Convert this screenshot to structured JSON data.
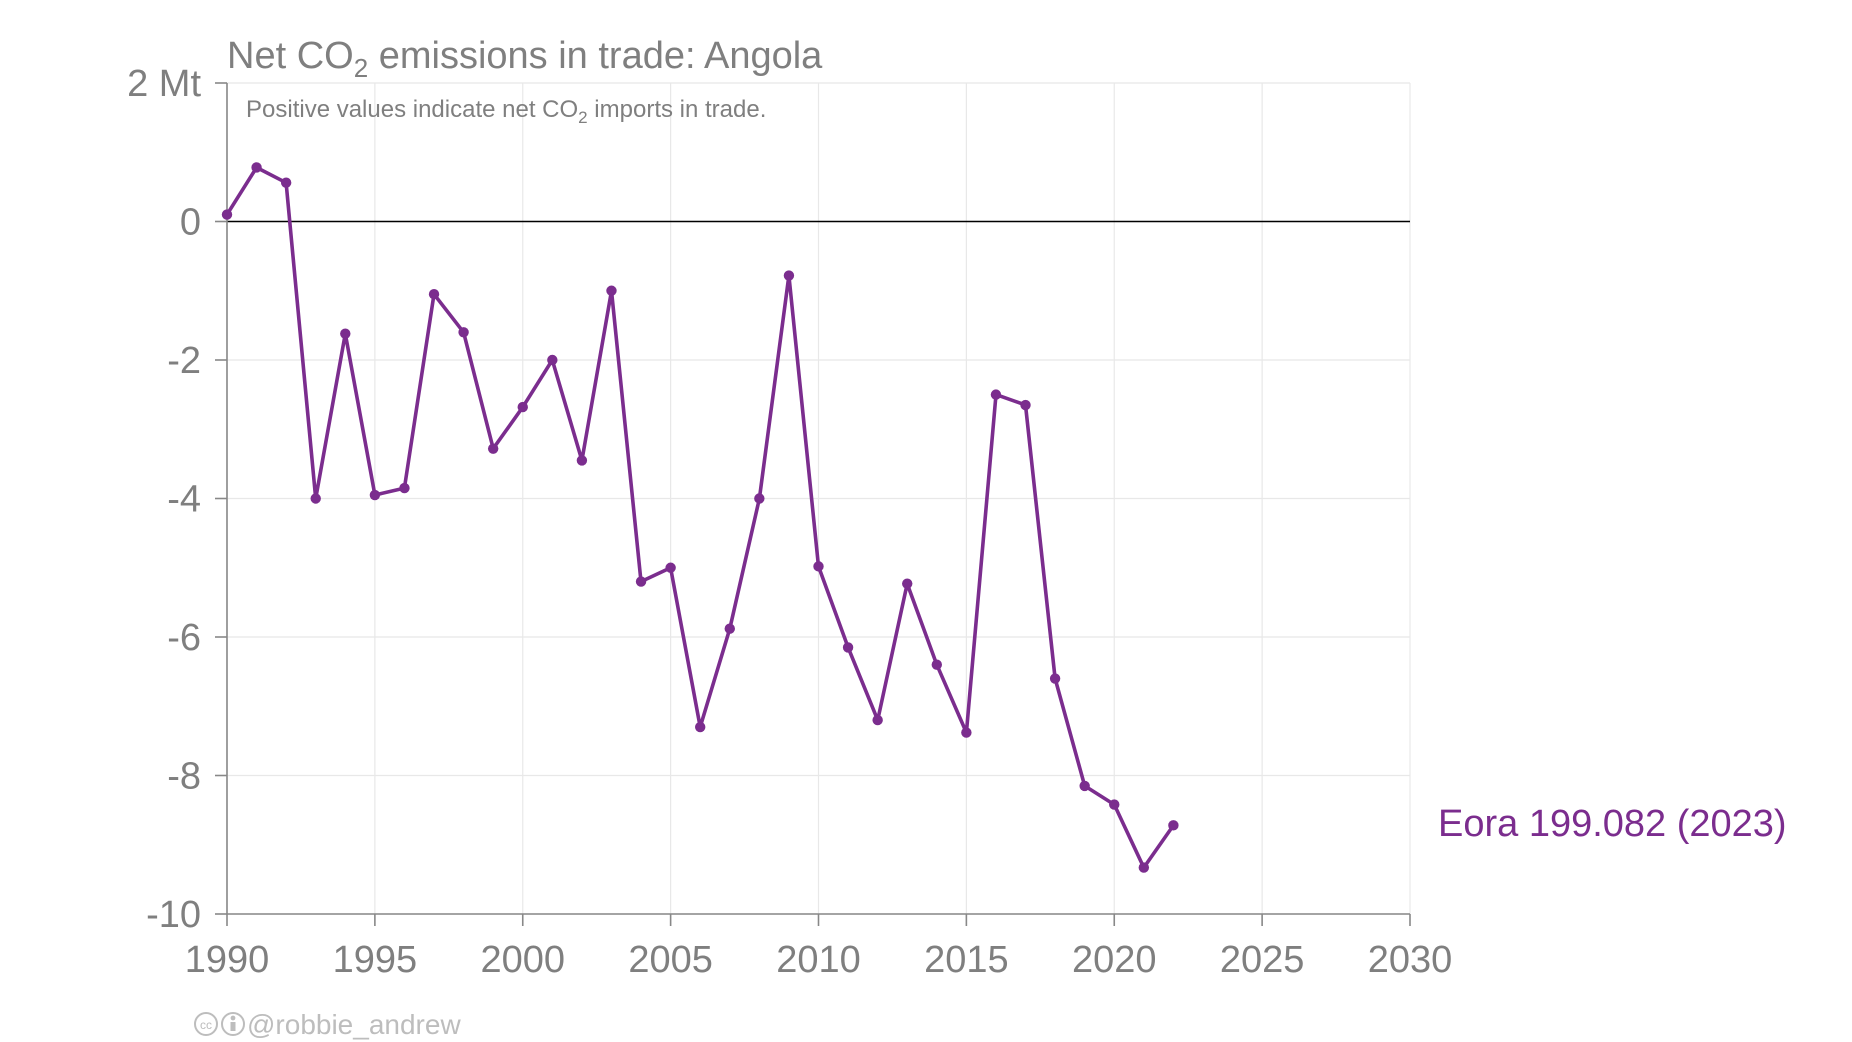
{
  "chart_data": {
    "type": "line",
    "title_main": "Net CO",
    "title_sub": "2",
    "title_rest": " emissions in trade: Angola",
    "subtitle_main": "Positive values indicate net CO",
    "subtitle_sub": "2",
    "subtitle_rest": " imports in trade.",
    "xlim": [
      1990,
      2030
    ],
    "ylim": [
      -10,
      2
    ],
    "x_ticks": [
      1990,
      1995,
      2000,
      2005,
      2010,
      2015,
      2020,
      2025,
      2030
    ],
    "x_tick_labels": [
      "1990",
      "1995",
      "2000",
      "2005",
      "2010",
      "2015",
      "2020",
      "2025",
      "2030"
    ],
    "y_ticks": [
      2,
      0,
      -2,
      -4,
      -6,
      -8,
      -10
    ],
    "y_tick_labels": [
      "2 Mt",
      "0",
      "-2",
      "-4",
      "-6",
      "-8",
      "-10"
    ],
    "grid": true,
    "zero_line": true,
    "series": [
      {
        "name": "Eora 199.082 (2023)",
        "color": "#7b2d8e",
        "x": [
          1990,
          1991,
          1992,
          1993,
          1994,
          1995,
          1996,
          1997,
          1998,
          1999,
          2000,
          2001,
          2002,
          2003,
          2004,
          2005,
          2006,
          2007,
          2008,
          2009,
          2010,
          2011,
          2012,
          2013,
          2014,
          2015,
          2016,
          2017,
          2018,
          2019,
          2020,
          2021,
          2022
        ],
        "y": [
          0.1,
          0.78,
          0.56,
          -4.0,
          -1.62,
          -3.95,
          -3.85,
          -1.05,
          -1.6,
          -3.28,
          -2.68,
          -2.0,
          -3.45,
          -1.0,
          -5.2,
          -5.0,
          -7.3,
          -5.88,
          -4.0,
          -0.78,
          -4.98,
          -6.15,
          -7.2,
          -5.23,
          -6.4,
          -7.38,
          -2.5,
          -2.65,
          -6.6,
          -8.15,
          -8.42,
          -9.33,
          -8.72
        ]
      }
    ],
    "credit": "@robbie_andrew"
  }
}
